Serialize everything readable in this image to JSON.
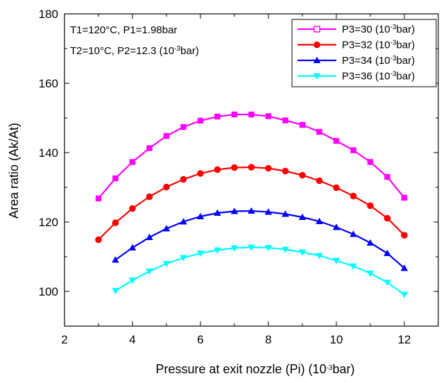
{
  "chart_data": {
    "type": "line",
    "title": "",
    "xlabel": "Pressure at exit nozzle (Pi) (10⁻³bar)",
    "xlabel_parts": {
      "pre": "Pressure at exit nozzle (Pi) (10",
      "sup": "-3",
      "post": "bar)"
    },
    "ylabel": "Area ratio (Ak/At)",
    "xlim": [
      2,
      13
    ],
    "ylim": [
      90,
      180
    ],
    "xticks": [
      2,
      4,
      6,
      8,
      10,
      12
    ],
    "yticks": [
      100,
      120,
      140,
      160,
      180
    ],
    "grid": false,
    "legend_position": "top-right",
    "annotations": [
      "T1=120°C,  P1=1.98bar",
      "T2=10°C,  P2=12.3  (10⁻³bar)"
    ],
    "annotation_parts": [
      {
        "pre": "T1=120°C,  P1=1.98bar",
        "sup": "",
        "post": ""
      },
      {
        "pre": "T2=10°C,  P2=12.3  (10",
        "sup": "-3",
        "post": "bar)"
      }
    ],
    "series": [
      {
        "name": "P3=30 (10⁻³bar)",
        "legend_parts": {
          "pre": "P3=30 (10",
          "sup": "-3",
          "post": "bar)"
        },
        "color": "#ff00ff",
        "marker": "square",
        "x": [
          3,
          3.5,
          4,
          4.5,
          5,
          5.5,
          6,
          6.5,
          7,
          7.5,
          8,
          8.5,
          9,
          9.5,
          10,
          10.5,
          11,
          11.5,
          12
        ],
        "y": [
          126.8,
          132.6,
          137.3,
          141.3,
          144.8,
          147.4,
          149.2,
          150.4,
          151.0,
          151.0,
          150.5,
          149.3,
          148.0,
          146.0,
          143.4,
          140.7,
          137.3,
          133.0,
          127.0
        ]
      },
      {
        "name": "P3=32 (10⁻³bar)",
        "legend_parts": {
          "pre": "P3=32 (10",
          "sup": "-3",
          "post": "bar)"
        },
        "color": "#ff0000",
        "marker": "circle",
        "x": [
          3,
          3.5,
          4,
          4.5,
          5,
          5.5,
          6,
          6.5,
          7,
          7.5,
          8,
          8.5,
          9,
          9.5,
          10,
          10.5,
          11,
          11.5,
          12
        ],
        "y": [
          114.9,
          119.8,
          123.9,
          127.3,
          130.1,
          132.3,
          134.0,
          135.1,
          135.7,
          135.8,
          135.5,
          134.7,
          133.5,
          131.9,
          129.9,
          127.5,
          124.7,
          121.1,
          116.2
        ]
      },
      {
        "name": "P3=34 (10⁻³bar)",
        "legend_parts": {
          "pre": "P3=34 (10",
          "sup": "-3",
          "post": "bar)"
        },
        "color": "#0000ff",
        "marker": "triangle-up",
        "x": [
          3.5,
          4,
          4.5,
          5,
          5.5,
          6,
          6.5,
          7,
          7.5,
          8,
          8.5,
          9,
          9.5,
          10,
          10.5,
          11,
          11.5,
          12
        ],
        "y": [
          109.1,
          112.6,
          115.6,
          118.1,
          120.1,
          121.6,
          122.6,
          123.1,
          123.2,
          122.9,
          122.3,
          121.4,
          120.2,
          118.5,
          116.5,
          114.0,
          111.0,
          106.7
        ]
      },
      {
        "name": "P3=36 (10⁻³bar)",
        "legend_parts": {
          "pre": "P3=36 (10",
          "sup": "-3",
          "post": "bar)"
        },
        "color": "#00ffff",
        "marker": "triangle-down",
        "x": [
          3.5,
          4,
          4.5,
          5,
          5.5,
          6,
          6.5,
          7,
          7.5,
          8,
          8.5,
          9,
          9.5,
          10,
          10.5,
          11,
          11.5,
          12
        ],
        "y": [
          100.2,
          103.2,
          105.8,
          108.0,
          109.7,
          111.0,
          111.9,
          112.5,
          112.7,
          112.6,
          112.1,
          111.3,
          110.3,
          108.9,
          107.3,
          105.2,
          102.6,
          99.1
        ]
      }
    ]
  }
}
